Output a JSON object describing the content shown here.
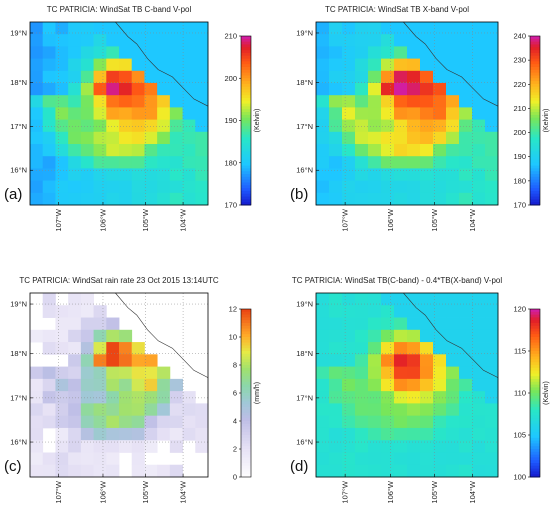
{
  "panels": [
    {
      "id": "a",
      "label": "(a)",
      "title": "TC PATRICIA: WindSat TB C-band V-pol",
      "unit": "(Kelvin)",
      "cbar_ticks": [
        "210",
        "200",
        "190",
        "180",
        "170"
      ],
      "field": "tb_c"
    },
    {
      "id": "b",
      "label": "(b)",
      "title": "TC PATRICIA: WindSat TB X-band V-pol",
      "unit": "(Kelvin)",
      "cbar_ticks": [
        "240",
        "230",
        "220",
        "210",
        "200",
        "190",
        "180",
        "170"
      ],
      "field": "tb_x"
    },
    {
      "id": "c",
      "label": "(c)",
      "title": "TC PATRICIA: WindSat rain rate 23 Oct 2015 13:14UTC",
      "unit": "(mm/h)",
      "cbar_ticks": [
        "12",
        "10",
        "8",
        "6",
        "4",
        "2",
        "0"
      ],
      "field": "rain"
    },
    {
      "id": "d",
      "label": "(d)",
      "title": "TC PATRICIA: WindSat TB(C-band) - 0.4*TB(X-band) V-pol",
      "unit": "(Kelvin)",
      "cbar_ticks": [
        "120",
        "115",
        "110",
        "105",
        "100"
      ],
      "field": "diff"
    }
  ],
  "lat_ticks": [
    "19°N",
    "18°N",
    "17°N",
    "16°N"
  ],
  "lon_ticks": [
    "107°W",
    "106°W",
    "105°W",
    "104°W"
  ],
  "chart_data": [
    {
      "type": "heatmap",
      "title": "TC PATRICIA: WindSat TB C-band V-pol",
      "zlabel": "(Kelvin)",
      "zlim": [
        170,
        210
      ],
      "x_range": [
        "107.5°W",
        "103.7°W"
      ],
      "y_range": [
        "15.3°N",
        "19.3°N"
      ]
    },
    {
      "type": "heatmap",
      "title": "TC PATRICIA: WindSat TB X-band V-pol",
      "zlabel": "(Kelvin)",
      "zlim": [
        170,
        240
      ],
      "x_range": [
        "107.5°W",
        "103.7°W"
      ],
      "y_range": [
        "15.3°N",
        "19.3°N"
      ]
    },
    {
      "type": "heatmap",
      "title": "TC PATRICIA: WindSat rain rate 23 Oct 2015 13:14UTC",
      "zlabel": "(mm/h)",
      "zlim": [
        0,
        12
      ],
      "x_range": [
        "107.5°W",
        "103.7°W"
      ],
      "y_range": [
        "15.3°N",
        "19.3°N"
      ]
    },
    {
      "type": "heatmap",
      "title": "TC PATRICIA: WindSat TB(C-band) - 0.4*TB(X-band) V-pol",
      "zlabel": "(Kelvin)",
      "zlim": [
        100,
        120
      ],
      "x_range": [
        "107.5°W",
        "103.7°W"
      ],
      "y_range": [
        "15.3°N",
        "19.3°N"
      ]
    }
  ]
}
